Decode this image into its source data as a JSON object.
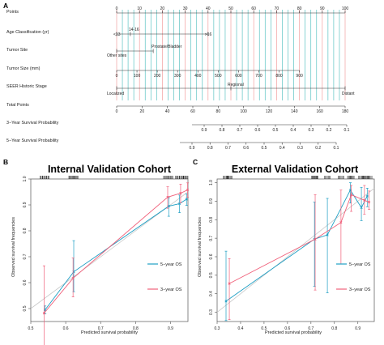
{
  "panels": {
    "a": "A",
    "b": "B",
    "c": "C"
  },
  "nomogram": {
    "rows": [
      {
        "label": "Points"
      },
      {
        "label": "Age Classification (yr)"
      },
      {
        "label": "Tumor Site"
      },
      {
        "label": "Tumor Size (mm)"
      },
      {
        "label": "SEER Historic Stage"
      },
      {
        "label": "Total Points"
      },
      {
        "label": "3−Year Survival Probability"
      },
      {
        "label": "5−Year Survival Probability"
      }
    ],
    "points_ticks": [
      0,
      10,
      20,
      30,
      40,
      50,
      60,
      70,
      80,
      90,
      100
    ],
    "age": {
      "groups": [
        "<13",
        "14-16",
        ">16"
      ],
      "points": [
        0,
        6,
        40
      ]
    },
    "site": {
      "groups": [
        "Other sites",
        "Prostate/Bladder"
      ],
      "points": [
        0,
        16
      ]
    },
    "size": {
      "ticks": [
        0,
        100,
        200,
        300,
        400,
        500,
        600,
        700,
        800,
        900
      ],
      "points_at_900": 80
    },
    "stage": {
      "groups": [
        "Localized",
        "Regional",
        "Distant"
      ],
      "points": [
        0,
        50,
        100
      ]
    },
    "total_ticks": [
      0,
      20,
      40,
      60,
      80,
      100,
      120,
      140,
      160,
      180
    ],
    "surv3_ticks": [
      "0.9",
      "0.8",
      "0.7",
      "0.6",
      "0.5",
      "0.4",
      "0.3",
      "0.2",
      "0.1"
    ],
    "surv5_ticks": [
      "0.9",
      "0.8",
      "0.7",
      "0.6",
      "0.5",
      "0.4",
      "0.3",
      "0.2",
      "0.1"
    ]
  },
  "chart_data": [
    {
      "type": "line",
      "title": "Internal Validation Cohort",
      "xlabel": "Predicted survival probability",
      "ylabel": "Observed survival frequencies",
      "xlim": [
        0.5,
        0.95
      ],
      "ylim": [
        0.45,
        1.0
      ],
      "xticks": [
        "0.5",
        "0.6",
        "0.7",
        "0.8",
        "0.9"
      ],
      "yticks": [
        "0.5",
        "0.6",
        "0.7",
        "0.8",
        "0.9",
        "1.0"
      ],
      "series": [
        {
          "name": "5−year OS",
          "color": "#1f9fc4",
          "x": [
            0.541,
            0.623,
            0.895,
            0.926,
            0.946
          ],
          "y": [
            0.495,
            0.642,
            0.895,
            0.905,
            0.922
          ],
          "lo": [
            0.48,
            0.565,
            0.856,
            0.87,
            0.898
          ],
          "hi": [
            0.51,
            0.762,
            0.928,
            0.938,
            0.942
          ]
        },
        {
          "name": "3−year OS",
          "color": "#f0607a",
          "x": [
            0.538,
            0.621,
            0.892,
            0.929,
            0.949
          ],
          "y": [
            0.482,
            0.617,
            0.93,
            0.945,
            0.958
          ],
          "lo": [
            0.335,
            0.545,
            0.887,
            0.908,
            0.93
          ],
          "hi": [
            0.665,
            0.695,
            0.97,
            0.98,
            0.985
          ]
        }
      ],
      "legend": "bottom-right"
    },
    {
      "type": "line",
      "title": "External Validation Cohort",
      "xlabel": "Predicted survival probability",
      "ylabel": "Observed survival frequencies",
      "xlim": [
        0.3,
        0.97
      ],
      "ylim": [
        0.25,
        1.02
      ],
      "xticks": [
        "0.3",
        "0.4",
        "0.5",
        "0.6",
        "0.7",
        "0.8",
        "0.9"
      ],
      "yticks": [
        "0.3",
        "0.4",
        "0.5",
        "0.6",
        "0.7",
        "0.8",
        "0.9",
        "1.0"
      ],
      "series": [
        {
          "name": "5−year OS",
          "color": "#1f9fc4",
          "x": [
            0.338,
            0.715,
            0.77,
            0.868,
            0.915,
            0.94
          ],
          "y": [
            0.36,
            0.695,
            0.718,
            0.96,
            0.865,
            0.928
          ],
          "lo": [
            0.255,
            0.44,
            0.405,
            0.89,
            0.795,
            0.87
          ],
          "hi": [
            0.63,
            0.895,
            0.915,
            1.0,
            0.975,
            0.97
          ]
        },
        {
          "name": "3−year OS",
          "color": "#f0607a",
          "x": [
            0.352,
            0.718,
            0.828,
            0.872,
            0.928,
            0.948
          ],
          "y": [
            0.455,
            0.695,
            0.785,
            0.935,
            0.905,
            0.895
          ],
          "lo": [
            0.26,
            0.42,
            0.56,
            0.845,
            0.83,
            0.855
          ],
          "hi": [
            0.59,
            0.935,
            0.96,
            0.985,
            0.985,
            0.955
          ]
        }
      ],
      "legend": "bottom-right"
    }
  ]
}
